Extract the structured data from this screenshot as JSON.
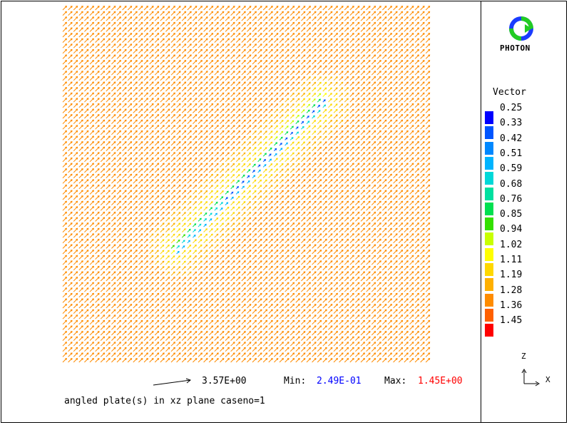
{
  "brand": {
    "name": "PHOTON"
  },
  "footer": {
    "scale_value": "3.57E+00",
    "min_label": "Min:",
    "min_value": "2.49E-01",
    "max_label": "Max:",
    "max_value": "1.45E+00",
    "caption": "angled plate(s) in xz plane caseno=1"
  },
  "colors": {
    "min_value": "#0000ff",
    "max_value": "#ff0000"
  },
  "chart_data": {
    "type": "vector-field",
    "description_plane": "xz",
    "axes": {
      "up": "Z",
      "right": "X"
    },
    "value_range": [
      0.249,
      1.45
    ],
    "reference_vector_magnitude": 3.57,
    "flow_direction": "diagonal up-right",
    "obstacle": {
      "shape": "angled plate"
    },
    "legend": {
      "title": "Vector",
      "entries": [
        {
          "value": "0.25",
          "color": "#0000ff"
        },
        {
          "value": "0.33",
          "color": "#0055ff"
        },
        {
          "value": "0.42",
          "color": "#0088ff"
        },
        {
          "value": "0.51",
          "color": "#00b4ff"
        },
        {
          "value": "0.59",
          "color": "#00d8d8"
        },
        {
          "value": "0.68",
          "color": "#00e0a0"
        },
        {
          "value": "0.76",
          "color": "#00e050"
        },
        {
          "value": "0.85",
          "color": "#33e000"
        },
        {
          "value": "0.94",
          "color": "#c8ff00"
        },
        {
          "value": "1.02",
          "color": "#ffff00"
        },
        {
          "value": "1.11",
          "color": "#ffd800"
        },
        {
          "value": "1.19",
          "color": "#ffb000"
        },
        {
          "value": "1.28",
          "color": "#ff8c00"
        },
        {
          "value": "1.36",
          "color": "#ff6000"
        },
        {
          "value": "1.45",
          "color": "#ff0000"
        }
      ]
    }
  }
}
